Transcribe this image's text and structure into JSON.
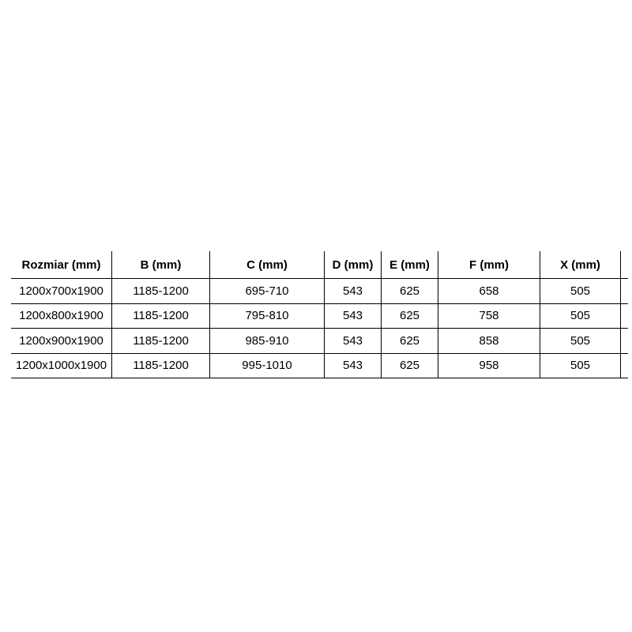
{
  "table": {
    "headers": [
      "Rozmiar (mm)",
      "B (mm)",
      "C (mm)",
      "D (mm)",
      "E (mm)",
      "F (mm)",
      "X (mm)"
    ],
    "rows": [
      {
        "cells": [
          "1200x700x1900",
          "1185-1200",
          "695-710",
          "543",
          "625",
          "658",
          "505"
        ]
      },
      {
        "cells": [
          "1200x800x1900",
          "1185-1200",
          "795-810",
          "543",
          "625",
          "758",
          "505"
        ]
      },
      {
        "cells": [
          "1200x900x1900",
          "1185-1200",
          "985-910",
          "543",
          "625",
          "858",
          "505"
        ]
      },
      {
        "cells": [
          "1200x1000x1900",
          "1185-1200",
          "995-1010",
          "543",
          "625",
          "958",
          "505"
        ]
      }
    ]
  },
  "chart_data": {
    "type": "table",
    "title": "",
    "columns": [
      "Rozmiar (mm)",
      "B (mm)",
      "C (mm)",
      "D (mm)",
      "E (mm)",
      "F (mm)",
      "X (mm)"
    ],
    "rows": [
      [
        "1200x700x1900",
        "1185-1200",
        "695-710",
        543,
        625,
        658,
        505
      ],
      [
        "1200x800x1900",
        "1185-1200",
        "795-810",
        543,
        625,
        758,
        505
      ],
      [
        "1200x900x1900",
        "1185-1200",
        "985-910",
        543,
        625,
        858,
        505
      ],
      [
        "1200x1000x1900",
        "1185-1200",
        "995-1010",
        543,
        625,
        958,
        505
      ]
    ],
    "layout": {
      "grid": "horizontal rules all rows, vertical separators between columns, no top or left outer border"
    }
  },
  "colors": {
    "background": "#ffffff",
    "border": "#000000",
    "text": "#000000"
  }
}
